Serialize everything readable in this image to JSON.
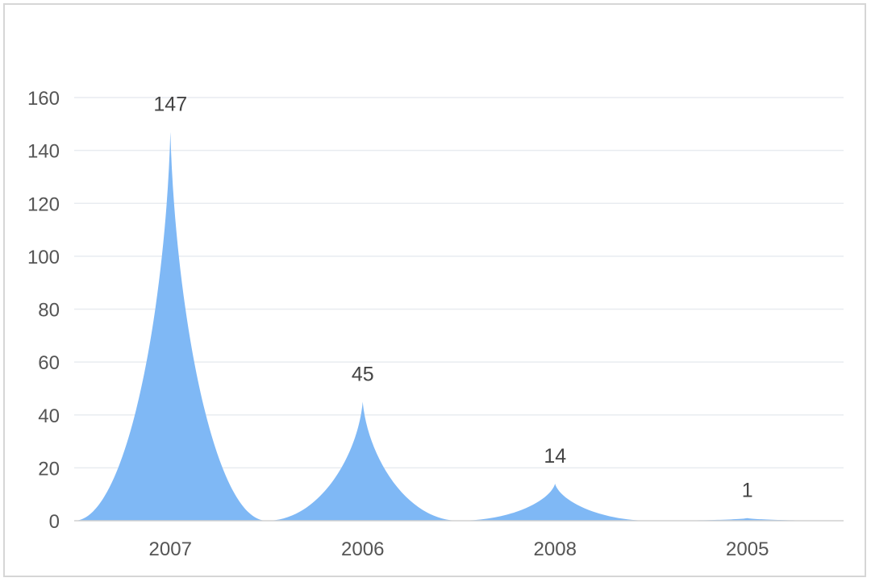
{
  "chart_data": {
    "type": "area",
    "style": "pictorial-spike",
    "categories": [
      "2007",
      "2006",
      "2008",
      "2005"
    ],
    "values": [
      147,
      45,
      14,
      1
    ],
    "data_labels": [
      "147",
      "45",
      "14",
      "1"
    ],
    "title": "",
    "xlabel": "",
    "ylabel": "",
    "ylim": [
      0,
      160
    ],
    "yticks": [
      0,
      20,
      40,
      60,
      80,
      100,
      120,
      140,
      160
    ],
    "ytick_labels": [
      "0",
      "20",
      "40",
      "60",
      "80",
      "100",
      "120",
      "140",
      "160"
    ],
    "grid": true,
    "legend": "none",
    "colors": {
      "fill": "#7fb8f5",
      "grid": "#e8ecf0",
      "axis": "#d0d0d0",
      "text": "#555555"
    }
  }
}
